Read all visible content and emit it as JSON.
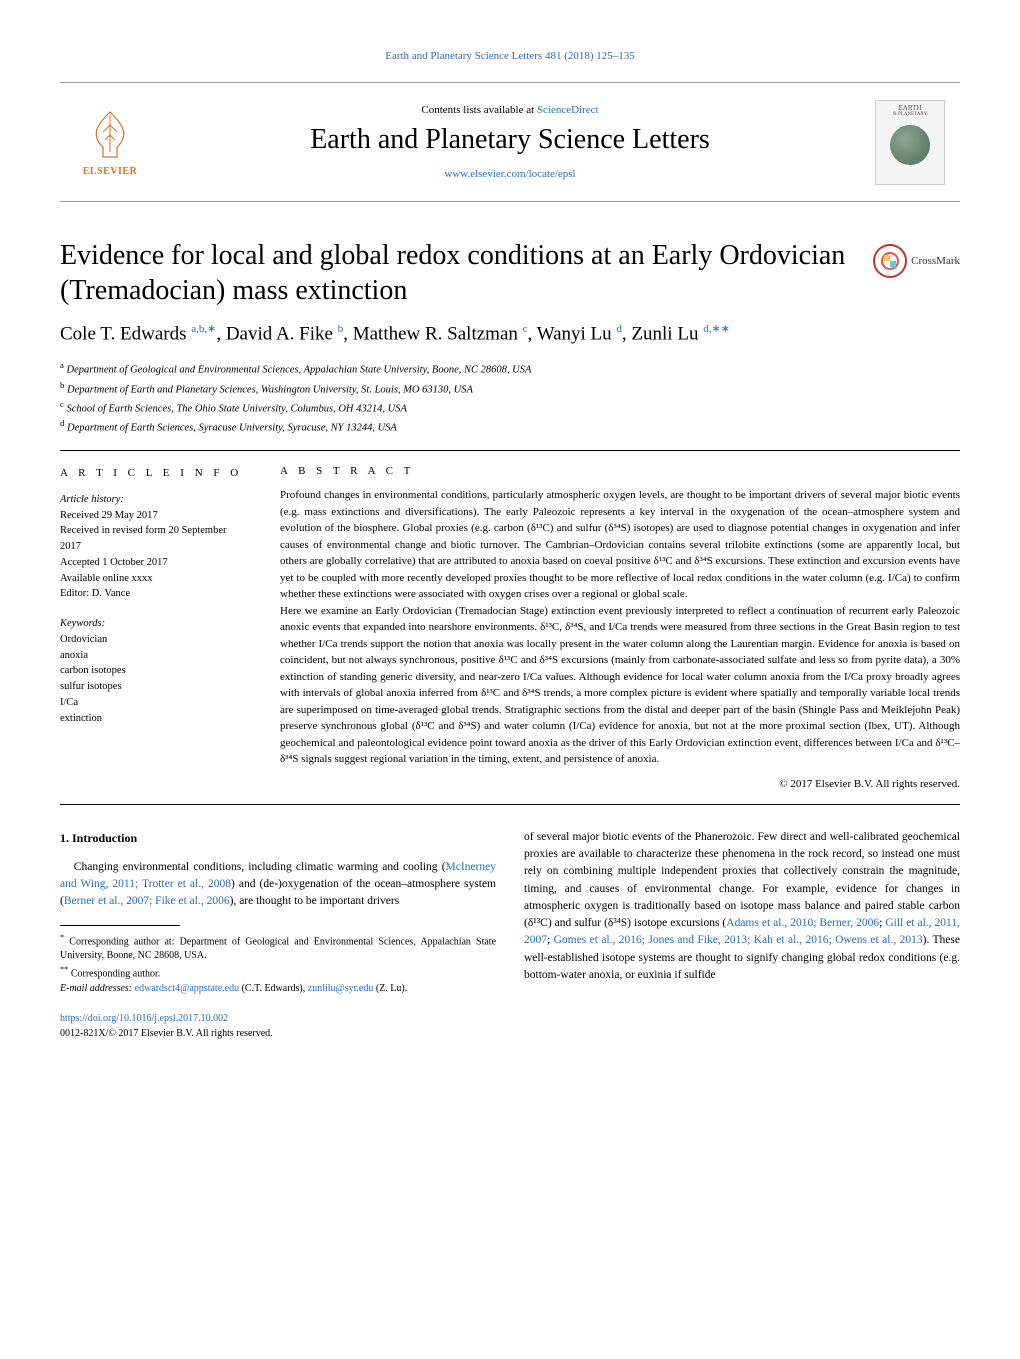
{
  "header": {
    "top_citation_link": "Earth and Planetary Science Letters 481 (2018) 125–135",
    "contents_prefix": "Contents lists available at ",
    "contents_link": "ScienceDirect",
    "journal_name": "Earth and Planetary Science Letters",
    "journal_url": "www.elsevier.com/locate/epsl",
    "publisher_name": "ELSEVIER",
    "cover_label": "EARTH",
    "cover_sublabel": "& PLANETARY"
  },
  "crossmark": {
    "label": "CrossMark"
  },
  "title": "Evidence for local and global redox conditions at an Early Ordovician (Tremadocian) mass extinction",
  "authors_html": "Cole T. Edwards <sup><a>a</a>,<a>b</a>,<a>∗</a></sup>, David A. Fike <sup><a>b</a></sup>, Matthew R. Saltzman <sup><a>c</a></sup>, Wanyi Lu <sup><a>d</a></sup>, Zunli Lu <sup><a>d</a>,<a>∗∗</a></sup>",
  "affiliations": [
    {
      "sup": "a",
      "text": "Department of Geological and Environmental Sciences, Appalachian State University, Boone, NC 28608, USA"
    },
    {
      "sup": "b",
      "text": "Department of Earth and Planetary Sciences, Washington University, St. Louis, MO 63130, USA"
    },
    {
      "sup": "c",
      "text": "School of Earth Sciences, The Ohio State University, Columbus, OH 43214, USA"
    },
    {
      "sup": "d",
      "text": "Department of Earth Sciences, Syracuse University, Syracuse, NY 13244, USA"
    }
  ],
  "article_info": {
    "heading": "A R T I C L E   I N F O",
    "history_label": "Article history:",
    "history": [
      "Received 29 May 2017",
      "Received in revised form 20 September 2017",
      "Accepted 1 October 2017",
      "Available online xxxx",
      "Editor: D. Vance"
    ],
    "keywords_label": "Keywords:",
    "keywords": [
      "Ordovician",
      "anoxia",
      "carbon isotopes",
      "sulfur isotopes",
      "I/Ca",
      "extinction"
    ]
  },
  "abstract": {
    "heading": "A B S T R A C T",
    "para1": "Profound changes in environmental conditions, particularly atmospheric oxygen levels, are thought to be important drivers of several major biotic events (e.g. mass extinctions and diversifications). The early Paleozoic represents a key interval in the oxygenation of the ocean–atmosphere system and evolution of the biosphere. Global proxies (e.g. carbon (δ¹³C) and sulfur (δ³⁴S) isotopes) are used to diagnose potential changes in oxygenation and infer causes of environmental change and biotic turnover. The Cambrian–Ordovician contains several trilobite extinctions (some are apparently local, but others are globally correlative) that are attributed to anoxia based on coeval positive δ¹³C and δ³⁴S excursions. These extinction and excursion events have yet to be coupled with more recently developed proxies thought to be more reflective of local redox conditions in the water column (e.g. I/Ca) to confirm whether these extinctions were associated with oxygen crises over a regional or global scale.",
    "para2": "Here we examine an Early Ordovician (Tremadocian Stage) extinction event previously interpreted to reflect a continuation of recurrent early Paleozoic anoxic events that expanded into nearshore environments. δ¹³C, δ³⁴S, and I/Ca trends were measured from three sections in the Great Basin region to test whether I/Ca trends support the notion that anoxia was locally present in the water column along the Laurentian margin. Evidence for anoxia is based on coincident, but not always synchronous, positive δ¹³C and δ³⁴S excursions (mainly from carbonate-associated sulfate and less so from pyrite data), a 30% extinction of standing generic diversity, and near-zero I/Ca values. Although evidence for local water column anoxia from the I/Ca proxy broadly agrees with intervals of global anoxia inferred from δ¹³C and δ³⁴S trends, a more complex picture is evident where spatially and temporally variable local trends are superimposed on time-averaged global trends. Stratigraphic sections from the distal and deeper part of the basin (Shingle Pass and Meiklejohn Peak) preserve synchronous global (δ¹³C and δ³⁴S) and water column (I/Ca) evidence for anoxia, but not at the more proximal section (Ibex, UT). Although geochemical and paleontological evidence point toward anoxia as the driver of this Early Ordovician extinction event, differences between I/Ca and δ¹³C–δ³⁴S signals suggest regional variation in the timing, extent, and persistence of anoxia.",
    "copyright": "© 2017 Elsevier B.V. All rights reserved."
  },
  "section1": {
    "heading": "1. Introduction",
    "col1": "Changing environmental conditions, including climatic warming and cooling (<a>McInerney and Wing, 2011; Trotter et al., 2008</a>) and (de-)oxygenation of the ocean–atmosphere system (<a>Berner et al., 2007; Fike et al., 2006</a>), are thought to be important drivers",
    "col2": "of several major biotic events of the Phanerozoic. Few direct and well-calibrated geochemical proxies are available to characterize these phenomena in the rock record, so instead one must rely on combining multiple independent proxies that collectively constrain the magnitude, timing, and causes of environmental change. For example, evidence for changes in atmospheric oxygen is traditionally based on isotope mass balance and paired stable carbon (δ¹³C) and sulfur (δ³⁴S) isotope excursions (<a>Adams et al., 2010; Berner, 2006</a>; <a>Gill et al., 2011, 2007</a>; <a>Gomes et al., 2016; Jones and Fike, 2013; Kah et al., 2016; Owens et al., 2013</a>). These well-established isotope systems are thought to signify changing global redox conditions (e.g. bottom-water anoxia, or euxinia if sulfide"
  },
  "footnotes": {
    "star1": "Corresponding author at: Department of Geological and Environmental Sciences, Appalachian State University, Boone, NC 28608, USA.",
    "star2": "Corresponding author.",
    "email_label": "E-mail addresses:",
    "email1": "edwardsct4@appstate.edu",
    "email1_name": "(C.T. Edwards),",
    "email2": "zunlilu@syr.edu",
    "email2_name": "(Z. Lu)."
  },
  "doi": {
    "url": "https://doi.org/10.1016/j.epsl.2017.10.002",
    "issn": "0012-821X/© 2017 Elsevier B.V. All rights reserved."
  },
  "colors": {
    "link": "#2a6eb5",
    "elsevier": "#d9732a",
    "crossmark_ring": "#c93030"
  }
}
